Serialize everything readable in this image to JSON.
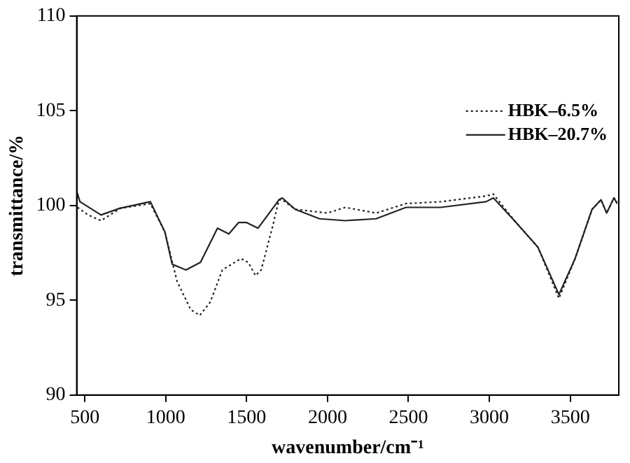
{
  "chart_data": {
    "type": "line",
    "xlabel": "wavenumber/cm⁻¹",
    "ylabel": "transmittance/%",
    "xlim": [
      450,
      3800
    ],
    "xticks": [
      500,
      1000,
      1500,
      2000,
      2500,
      3000,
      3500
    ],
    "ylim": [
      90,
      110
    ],
    "yticks": [
      90,
      95,
      100,
      105,
      110
    ],
    "grid": false,
    "legend": "top right",
    "marker": "none",
    "series": [
      {
        "name": "HBK–6.5%",
        "color": "#222222",
        "line_style": "dotted",
        "x": [
          455,
          520,
          600,
          720,
          905,
          995,
          1070,
          1155,
          1210,
          1275,
          1350,
          1465,
          1510,
          1555,
          1590,
          1655,
          1700,
          1720,
          1800,
          2000,
          2110,
          2300,
          2485,
          2700,
          2980,
          3025,
          3155,
          3300,
          3430,
          3530,
          3635,
          3690,
          3725,
          3770,
          3790
        ],
        "values": [
          99.9,
          99.5,
          99.2,
          99.85,
          100.1,
          98.6,
          96.0,
          94.5,
          94.2,
          94.9,
          96.6,
          97.2,
          97.0,
          96.3,
          96.6,
          98.7,
          100.3,
          100.3,
          99.8,
          99.6,
          99.9,
          99.6,
          100.1,
          100.2,
          100.5,
          100.6,
          99.2,
          97.8,
          95.1,
          97.2,
          99.8,
          100.3,
          99.6,
          100.4,
          100.2
        ]
      },
      {
        "name": "HBK–20.7%",
        "color": "#222222",
        "line_style": "solid",
        "x": [
          452,
          470,
          600,
          715,
          905,
          995,
          1040,
          1125,
          1215,
          1320,
          1390,
          1450,
          1500,
          1570,
          1640,
          1700,
          1720,
          1800,
          1950,
          2110,
          2300,
          2485,
          2700,
          2980,
          3025,
          3155,
          3300,
          3430,
          3530,
          3635,
          3690,
          3725,
          3770,
          3790
        ],
        "values": [
          100.7,
          100.2,
          99.5,
          99.85,
          100.2,
          98.6,
          96.9,
          96.6,
          97.0,
          98.8,
          98.5,
          99.1,
          99.1,
          98.8,
          99.6,
          100.3,
          100.4,
          99.8,
          99.3,
          99.2,
          99.3,
          99.9,
          99.9,
          100.2,
          100.4,
          99.2,
          97.8,
          95.3,
          97.2,
          99.8,
          100.3,
          99.6,
          100.4,
          100.1
        ]
      }
    ]
  }
}
